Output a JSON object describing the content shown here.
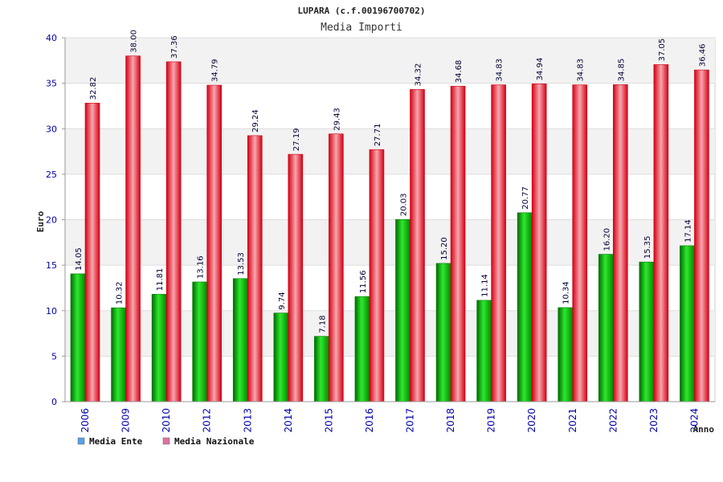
{
  "chart_data": {
    "type": "bar",
    "title": "LUPARA (c.f.00196700702)",
    "subtitle": "Media Importi",
    "xlabel": "Anno",
    "ylabel": "Euro",
    "ylim": [
      0,
      40
    ],
    "yticks": [
      0,
      5,
      10,
      15,
      20,
      25,
      30,
      35,
      40
    ],
    "categories": [
      "2006",
      "2009",
      "2010",
      "2012",
      "2013",
      "2014",
      "2015",
      "2016",
      "2017",
      "2018",
      "2019",
      "2020",
      "2021",
      "2022",
      "2023",
      "2024"
    ],
    "series": [
      {
        "name": "Media Ente",
        "values": [
          14.05,
          10.32,
          11.81,
          13.16,
          13.53,
          9.74,
          7.18,
          11.56,
          20.03,
          15.2,
          11.14,
          20.77,
          10.34,
          16.2,
          15.35,
          17.14
        ],
        "labels": [
          "14.05",
          "10.32",
          "11.81",
          "13.16",
          "13.53",
          "9.74",
          "7.18",
          "11.56",
          "20.03",
          "15.20",
          "11.14",
          "20.77",
          "10.34",
          "16.20",
          "15.35",
          "17.14"
        ],
        "color": "#00c000",
        "legend_color": "#5aa0e8"
      },
      {
        "name": "Media Nazionale",
        "values": [
          32.82,
          38.0,
          37.36,
          34.79,
          29.24,
          27.19,
          29.43,
          27.71,
          34.32,
          34.68,
          34.83,
          34.94,
          34.83,
          34.85,
          37.05,
          36.46
        ],
        "labels": [
          "32.82",
          "38.00",
          "37.36",
          "34.79",
          "29.24",
          "27.19",
          "29.43",
          "27.71",
          "34.32",
          "34.68",
          "34.83",
          "34.94",
          "34.83",
          "34.85",
          "37.05",
          "36.46"
        ],
        "color": "#ee1122",
        "legend_color": "#e070a0"
      }
    ],
    "grid": true,
    "legend_position": "bottom-left"
  }
}
